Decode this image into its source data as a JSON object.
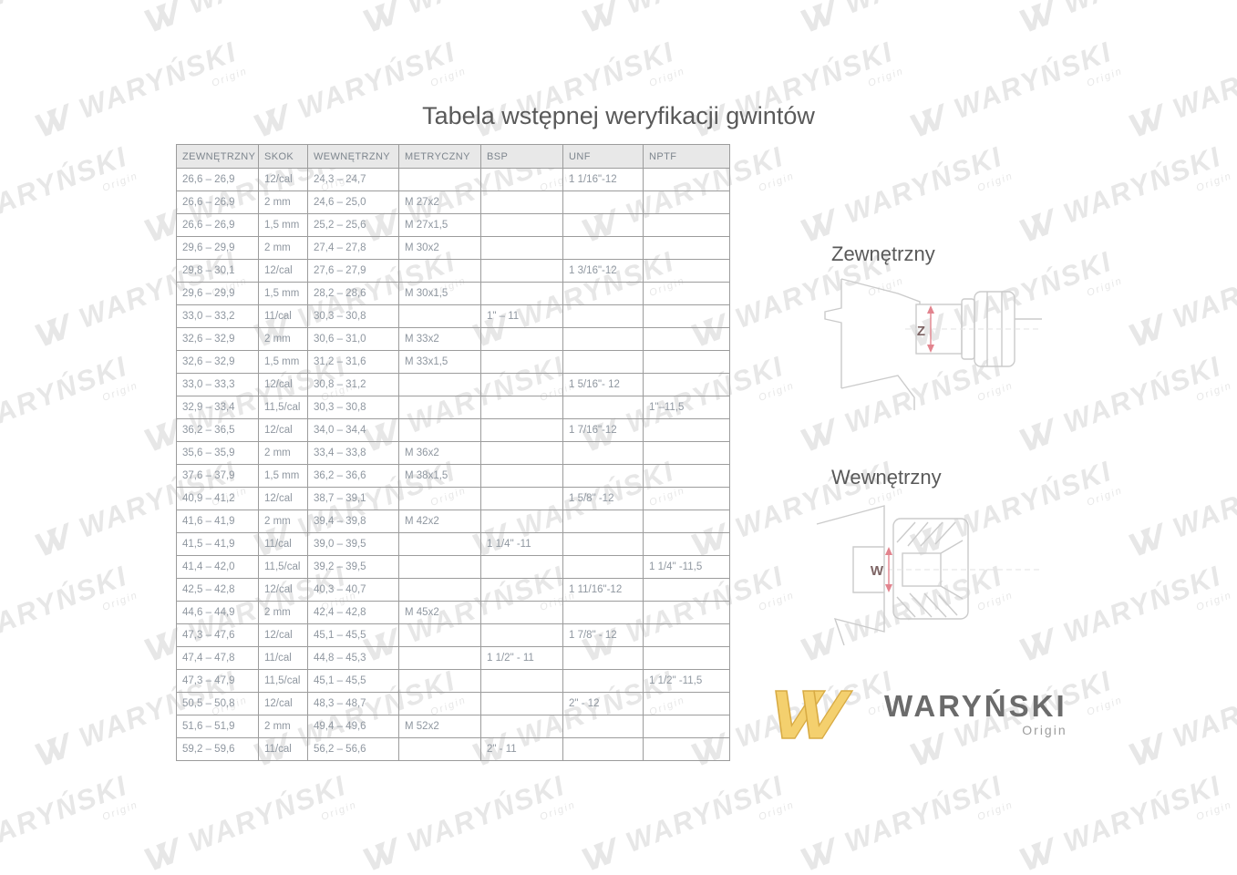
{
  "page": {
    "title": "Tabela wstępnej weryfikacji gwintów"
  },
  "table": {
    "headers": [
      "ZEWNĘTRZNY",
      "SKOK",
      "WEWNĘTRZNY",
      "METRYCZNY",
      "BSP",
      "UNF",
      "NPTF"
    ],
    "rows": [
      [
        "26,6 – 26,9",
        "12/cal",
        "24,3 – 24,7",
        "",
        "",
        "1 1/16\"-12",
        ""
      ],
      [
        "26,6 – 26,9",
        "2 mm",
        "24,6 – 25,0",
        "M 27x2",
        "",
        "",
        ""
      ],
      [
        "26,6 – 26,9",
        "1,5 mm",
        "25,2 – 25,6",
        "M 27x1,5",
        "",
        "",
        ""
      ],
      [
        "29,6 – 29,9",
        "2 mm",
        "27,4 – 27,8",
        "M 30x2",
        "",
        "",
        ""
      ],
      [
        "29,8 – 30,1",
        "12/cal",
        "27,6 – 27,9",
        "",
        "",
        "1 3/16\"-12",
        ""
      ],
      [
        "29,6 – 29,9",
        "1,5 mm",
        "28,2 – 28,6",
        "M 30x1,5",
        "",
        "",
        ""
      ],
      [
        "33,0 – 33,2",
        "11/cal",
        "30,3 – 30,8",
        "",
        "1\" – 11",
        "",
        ""
      ],
      [
        "32,6 – 32,9",
        "2 mm",
        "30,6 – 31,0",
        "M 33x2",
        "",
        "",
        ""
      ],
      [
        "32,6 – 32,9",
        "1,5 mm",
        "31,2 – 31,6",
        "M 33x1,5",
        "",
        "",
        ""
      ],
      [
        "33,0 – 33,3",
        "12/cal",
        "30,8 – 31,2",
        "",
        "",
        "1 5/16\"- 12",
        ""
      ],
      [
        "32,9 – 33,4",
        "11,5/cal",
        "30,3 – 30,8",
        "",
        "",
        "",
        "1\"–11,5"
      ],
      [
        "36,2 – 36,5",
        "12/cal",
        "34,0 – 34,4",
        "",
        "",
        "1 7/16\"-12",
        ""
      ],
      [
        "35,6 – 35,9",
        "2 mm",
        "33,4 – 33,8",
        "M 36x2",
        "",
        "",
        ""
      ],
      [
        "37,6 – 37,9",
        "1,5 mm",
        "36,2 – 36,6",
        "M 38x1,5",
        "",
        "",
        ""
      ],
      [
        "40,9 – 41,2",
        "12/cal",
        "38,7 – 39,1",
        "",
        "",
        "1 5/8\" -12",
        ""
      ],
      [
        "41,6 – 41,9",
        "2 mm",
        "39,4 – 39,8",
        "M 42x2",
        "",
        "",
        ""
      ],
      [
        "41,5 – 41,9",
        "11/cal",
        "39,0 – 39,5",
        "",
        "1 1/4\" -11",
        "",
        ""
      ],
      [
        "41,4 – 42,0",
        "11,5/cal",
        "39,2 – 39,5",
        "",
        "",
        "",
        "1 1/4\" -11,5"
      ],
      [
        "42,5 – 42,8",
        "12/cal",
        "40,3 – 40,7",
        "",
        "",
        "1 11/16\"-12",
        ""
      ],
      [
        "44,6 – 44,9",
        "2 mm",
        "42,4 – 42,8",
        "M 45x2",
        "",
        "",
        ""
      ],
      [
        "47,3 – 47,6",
        "12/cal",
        "45,1 – 45,5",
        "",
        "",
        "1 7/8\" - 12",
        ""
      ],
      [
        "47,4 – 47,8",
        "11/cal",
        "44,8 – 45,3",
        "",
        "1 1/2\" - 11",
        "",
        ""
      ],
      [
        "47,3 – 47,9",
        "11,5/cal",
        "45,1 – 45,5",
        "",
        "",
        "",
        "1 1/2\" -11,5"
      ],
      [
        "50,5 – 50,8",
        "12/cal",
        "48,3 – 48,7",
        "",
        "",
        "2\" - 12",
        ""
      ],
      [
        "51,6 – 51,9",
        "2 mm",
        "49,4 – 49,6",
        "M 52x2",
        "",
        "",
        ""
      ],
      [
        "59,2 – 59,6",
        "11/cal",
        "56,2 – 56,6",
        "",
        "2\" - 11",
        "",
        ""
      ]
    ]
  },
  "diagrams": {
    "external": {
      "label": "Zewnętrzny",
      "dimension_letter": "Z"
    },
    "internal": {
      "label": "Wewnętrzny",
      "dimension_letter": "W"
    }
  },
  "logo": {
    "brand": "WARYŃSKI",
    "sub": "Origin"
  },
  "watermark": {
    "text": "WARYŃSKI",
    "sub": "Origin"
  },
  "colors": {
    "accent_red": "#e2848e",
    "dimension_letter": "#7d6464",
    "logo_yellow": "#f4d06e",
    "logo_yellow_edge": "#d8ab44",
    "watermark_gray": "#e7e7e7",
    "diagram_line": "#cbcbcb",
    "table_text": "#8f97a0",
    "header_bg": "#e8e8e8",
    "border_gray": "#9c9c9c",
    "title_text": "#595959"
  }
}
